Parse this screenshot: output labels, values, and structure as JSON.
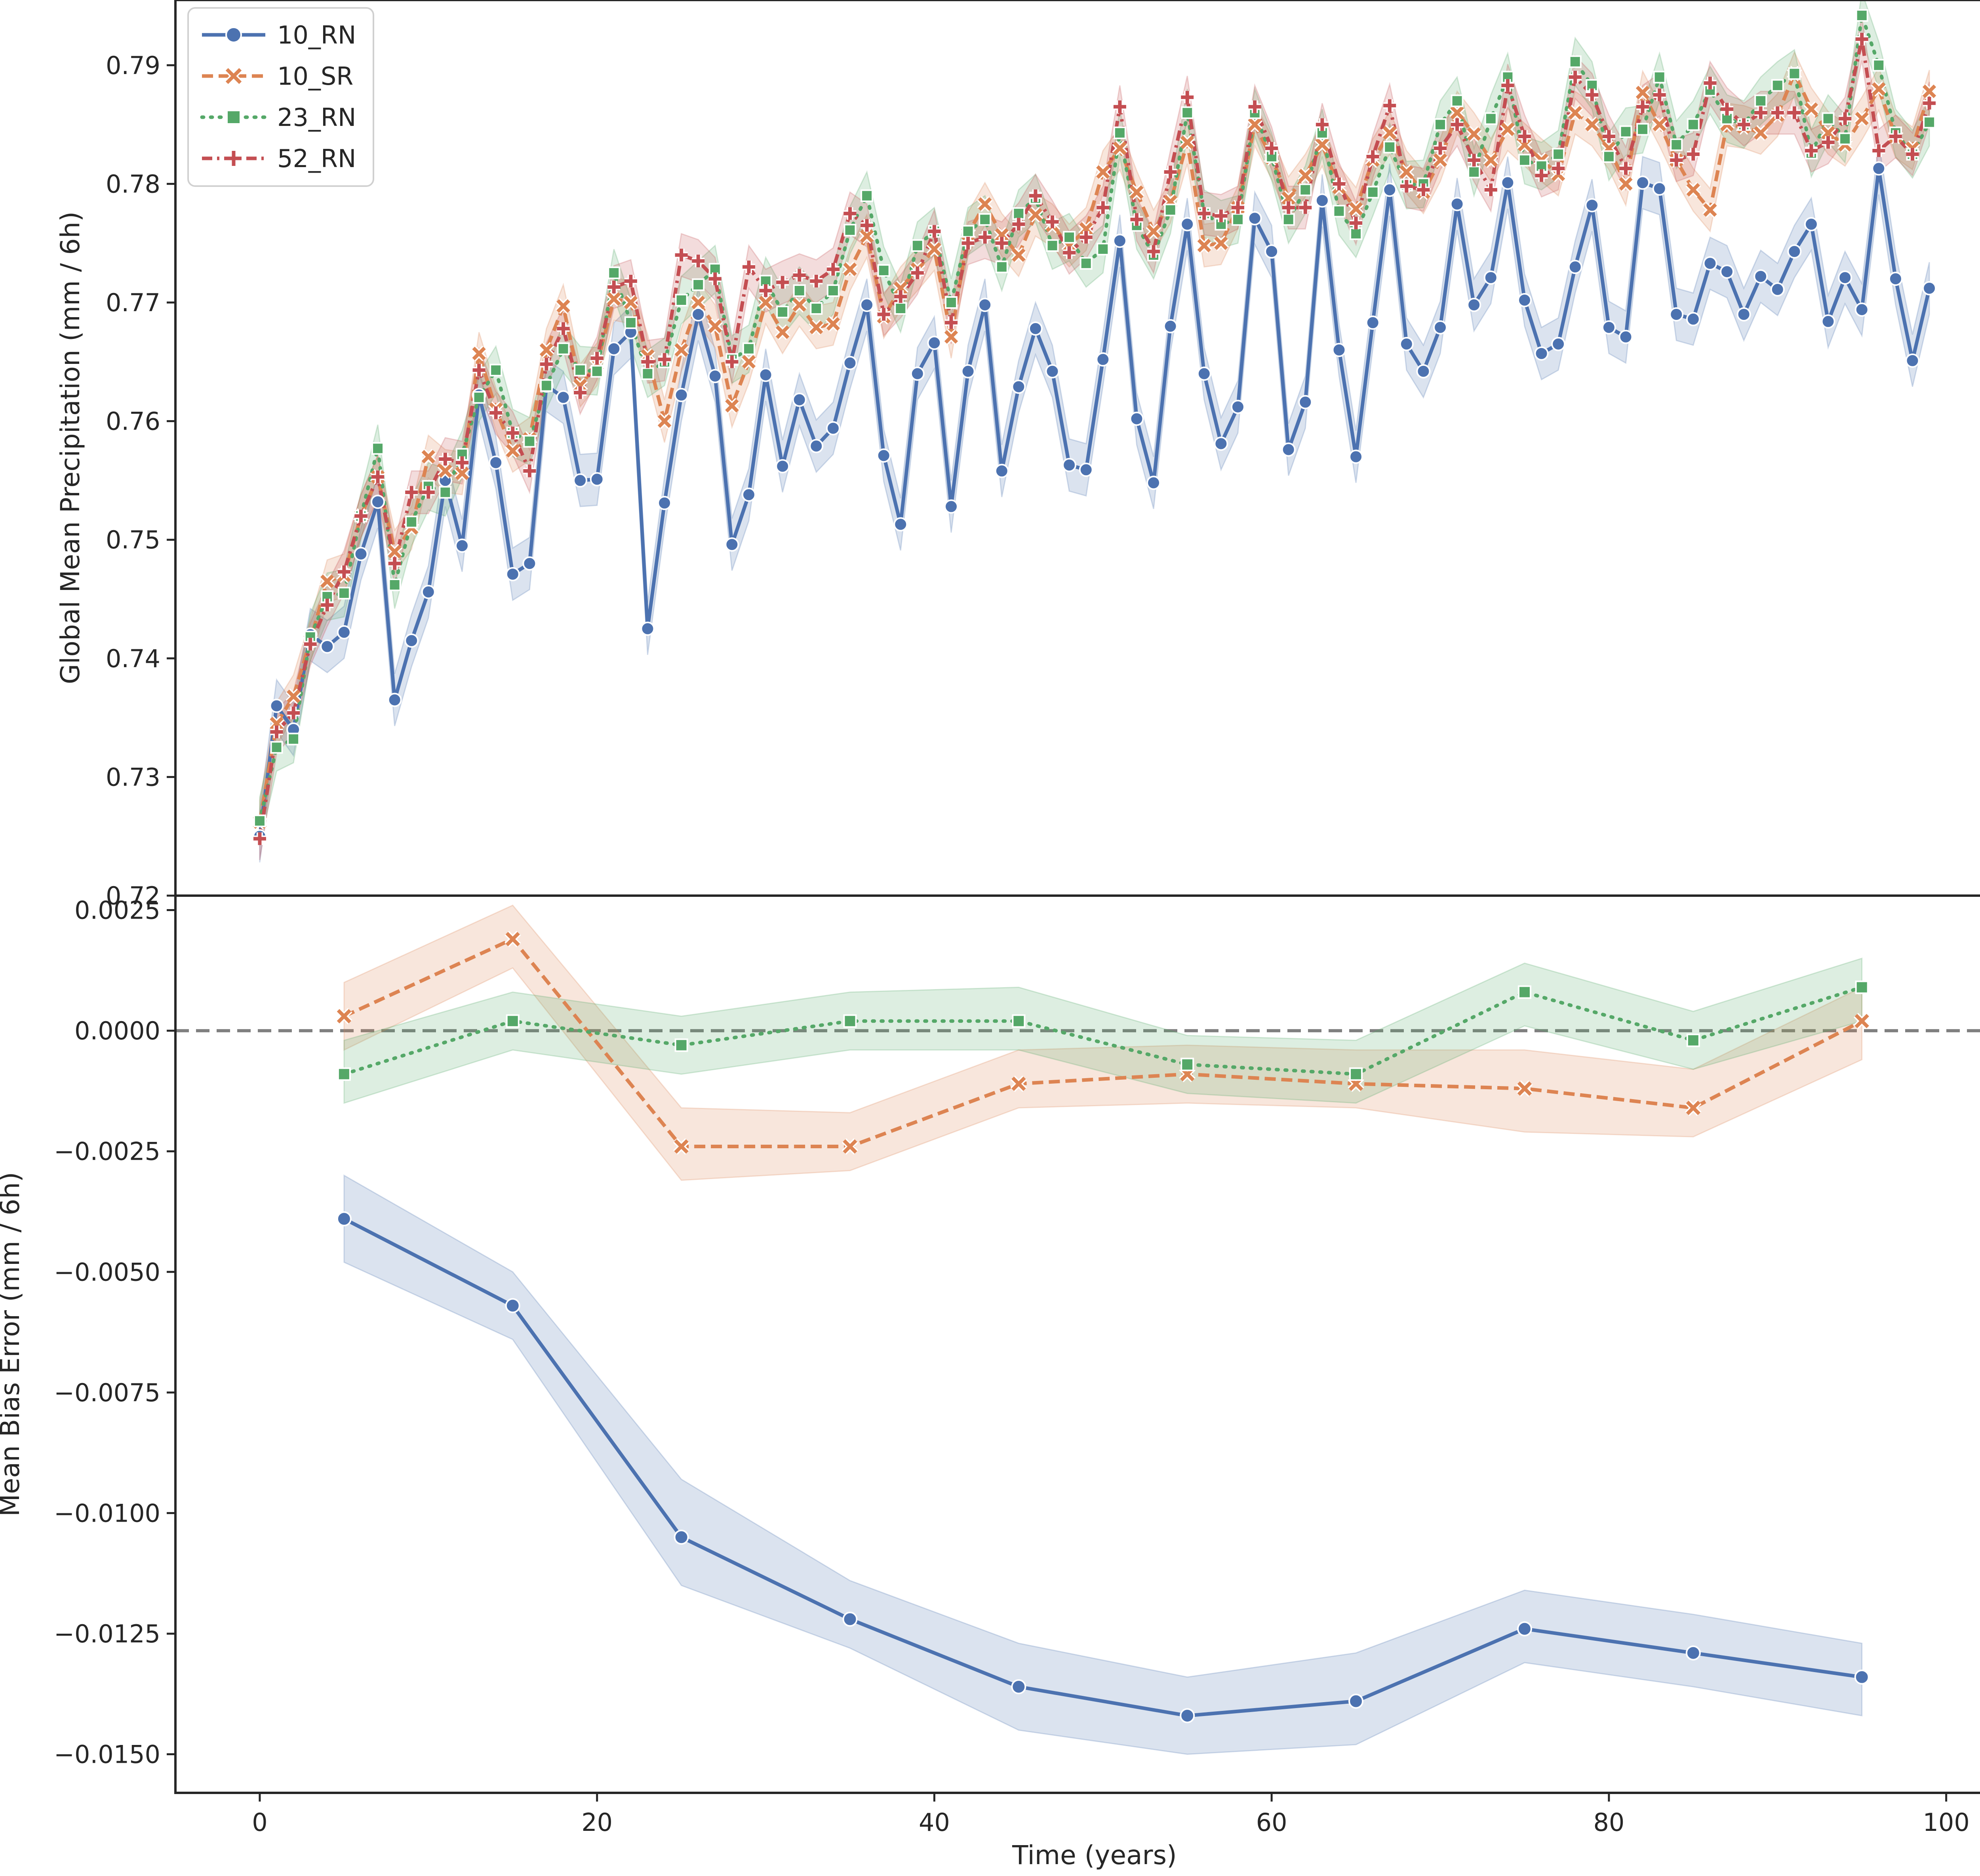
{
  "chart_data": [
    {
      "type": "line",
      "panel": "top",
      "title": "",
      "xlabel": "",
      "ylabel": "Global Mean Precipitation (mm / 6h)",
      "xlim": [
        -5,
        104
      ],
      "ylim": [
        0.72,
        0.7955
      ],
      "yticks": [
        0.72,
        0.73,
        0.74,
        0.75,
        0.76,
        0.77,
        0.78,
        0.79
      ],
      "ytick_labels": [
        "0.72",
        "0.73",
        "0.74",
        "0.75",
        "0.76",
        "0.77",
        "0.78",
        "0.79"
      ],
      "grid": false,
      "legend": {
        "placement": "top-left",
        "entries": [
          "10_RN",
          "10_SR",
          "23_RN",
          "52_RN"
        ]
      },
      "x_step": 1,
      "series": [
        {
          "name": "10_RN",
          "color": "#4c72b0",
          "marker": "circle",
          "dash": "solid",
          "band": 0.0022,
          "values": [
            0.725,
            0.736,
            0.734,
            0.742,
            0.741,
            0.7422,
            0.7488,
            0.7532,
            0.7365,
            0.7415,
            0.7456,
            0.755,
            0.7495,
            0.7622,
            0.7565,
            0.7471,
            0.748,
            0.763,
            0.762,
            0.755,
            0.7551,
            0.7661,
            0.7675,
            0.7425,
            0.7531,
            0.7622,
            0.769,
            0.7638,
            0.7496,
            0.7538,
            0.7639,
            0.7562,
            0.7618,
            0.7579,
            0.7594,
            0.7649,
            0.7698,
            0.7571,
            0.7513,
            0.764,
            0.7666,
            0.7528,
            0.7642,
            0.7698,
            0.7558,
            0.7629,
            0.7678,
            0.7642,
            0.7563,
            0.7559,
            0.7652,
            0.7752,
            0.7602,
            0.7548,
            0.768,
            0.7766,
            0.764,
            0.7581,
            0.7612,
            0.7771,
            0.7743,
            0.7576,
            0.7616,
            0.7786,
            0.766,
            0.757,
            0.7683,
            0.7795,
            0.7665,
            0.7642,
            0.7679,
            0.7783,
            0.7698,
            0.7721,
            0.7801,
            0.7702,
            0.7657,
            0.7665,
            0.773,
            0.7782,
            0.7679,
            0.7671,
            0.7801,
            0.7796,
            0.769,
            0.7686,
            0.7733,
            0.7726,
            0.769,
            0.7722,
            0.7711,
            0.7743,
            0.7766,
            0.7684,
            0.7721,
            0.7694,
            0.7813,
            0.772,
            0.7651,
            0.7712
          ]
        },
        {
          "name": "10_SR",
          "color": "#dd8452",
          "marker": "x",
          "dash": "dashed",
          "band": 0.0018,
          "values": [
            0.7262,
            0.7345,
            0.7368,
            0.7415,
            0.7465,
            0.747,
            0.752,
            0.7553,
            0.749,
            0.751,
            0.757,
            0.7558,
            0.7556,
            0.7657,
            0.761,
            0.7575,
            0.7585,
            0.766,
            0.7697,
            0.763,
            0.7648,
            0.7703,
            0.77,
            0.7655,
            0.76,
            0.766,
            0.77,
            0.768,
            0.7613,
            0.765,
            0.77,
            0.7675,
            0.7698,
            0.7679,
            0.7682,
            0.7728,
            0.7756,
            0.7688,
            0.7712,
            0.7728,
            0.7745,
            0.7671,
            0.7758,
            0.7783,
            0.7757,
            0.774,
            0.7774,
            0.7765,
            0.7748,
            0.7762,
            0.781,
            0.783,
            0.7793,
            0.776,
            0.7785,
            0.7835,
            0.7748,
            0.775,
            0.778,
            0.785,
            0.7822,
            0.7788,
            0.7807,
            0.7833,
            0.7797,
            0.7779,
            0.782,
            0.7843,
            0.781,
            0.7793,
            0.782,
            0.786,
            0.7842,
            0.782,
            0.7846,
            0.7833,
            0.782,
            0.7808,
            0.786,
            0.785,
            0.783,
            0.78,
            0.7877,
            0.785,
            0.782,
            0.7795,
            0.7778,
            0.785,
            0.7848,
            0.7843,
            0.7858,
            0.7893,
            0.7863,
            0.7843,
            0.7833,
            0.7855,
            0.788,
            0.784,
            0.783,
            0.7878
          ]
        },
        {
          "name": "23_RN",
          "color": "#55a868",
          "marker": "square",
          "dash": "dotted",
          "band": 0.002,
          "values": [
            0.7263,
            0.7325,
            0.7332,
            0.7418,
            0.7452,
            0.7455,
            0.752,
            0.7577,
            0.7462,
            0.7515,
            0.7545,
            0.754,
            0.7572,
            0.762,
            0.7643,
            0.759,
            0.7583,
            0.763,
            0.7661,
            0.7643,
            0.7642,
            0.7725,
            0.7683,
            0.764,
            0.765,
            0.7702,
            0.7715,
            0.7728,
            0.7652,
            0.7661,
            0.7718,
            0.7692,
            0.771,
            0.7695,
            0.771,
            0.7761,
            0.779,
            0.7727,
            0.7695,
            0.7748,
            0.776,
            0.77,
            0.776,
            0.777,
            0.773,
            0.7775,
            0.7788,
            0.7748,
            0.7755,
            0.7733,
            0.7745,
            0.7843,
            0.7765,
            0.774,
            0.7778,
            0.786,
            0.7775,
            0.7766,
            0.777,
            0.786,
            0.7823,
            0.777,
            0.7795,
            0.7843,
            0.7777,
            0.7758,
            0.7793,
            0.7831,
            0.7799,
            0.78,
            0.785,
            0.787,
            0.781,
            0.7855,
            0.789,
            0.782,
            0.7815,
            0.7825,
            0.7903,
            0.7883,
            0.7823,
            0.7844,
            0.7846,
            0.789,
            0.7833,
            0.785,
            0.7879,
            0.7855,
            0.785,
            0.787,
            0.7883,
            0.7893,
            0.7826,
            0.7855,
            0.7838,
            0.7942,
            0.79,
            0.7843,
            0.7825,
            0.7852
          ]
        },
        {
          "name": "52_RN",
          "color": "#c44e52",
          "marker": "plus",
          "dash": "dashdot",
          "band": 0.0018,
          "values": [
            0.7248,
            0.7338,
            0.7354,
            0.7412,
            0.7445,
            0.7473,
            0.752,
            0.7553,
            0.748,
            0.754,
            0.754,
            0.7568,
            0.7565,
            0.7643,
            0.7607,
            0.759,
            0.7558,
            0.7648,
            0.7678,
            0.7624,
            0.7653,
            0.7713,
            0.7718,
            0.765,
            0.7652,
            0.774,
            0.7735,
            0.772,
            0.765,
            0.773,
            0.771,
            0.7717,
            0.7723,
            0.7718,
            0.7728,
            0.7775,
            0.7765,
            0.769,
            0.7705,
            0.7725,
            0.776,
            0.7683,
            0.775,
            0.7755,
            0.775,
            0.7766,
            0.779,
            0.7768,
            0.7742,
            0.7755,
            0.778,
            0.7865,
            0.777,
            0.7743,
            0.781,
            0.7873,
            0.7775,
            0.7773,
            0.778,
            0.7865,
            0.783,
            0.778,
            0.778,
            0.785,
            0.78,
            0.7767,
            0.7823,
            0.7866,
            0.7798,
            0.7795,
            0.783,
            0.785,
            0.782,
            0.7795,
            0.7883,
            0.784,
            0.7807,
            0.7813,
            0.789,
            0.7875,
            0.784,
            0.7813,
            0.7865,
            0.7875,
            0.782,
            0.7825,
            0.7885,
            0.7863,
            0.785,
            0.786,
            0.786,
            0.786,
            0.7828,
            0.7835,
            0.7855,
            0.7922,
            0.7828,
            0.784,
            0.7825,
            0.7868
          ]
        }
      ]
    },
    {
      "type": "line",
      "panel": "bottom",
      "title": "",
      "xlabel": "Time (years)",
      "ylabel": "Mean Bias Error (mm / 6h)",
      "xlim": [
        -5,
        104
      ],
      "ylim": [
        -0.0158,
        0.0028
      ],
      "xticks": [
        0,
        20,
        40,
        60,
        80,
        100
      ],
      "xtick_labels": [
        "0",
        "20",
        "40",
        "60",
        "80",
        "100"
      ],
      "yticks": [
        0.0025,
        0.0,
        -0.0025,
        -0.005,
        -0.0075,
        -0.01,
        -0.0125,
        -0.015
      ],
      "ytick_labels": [
        "0.0025",
        "0.0000",
        "−0.0025",
        "−0.0050",
        "−0.0075",
        "−0.0100",
        "−0.0125",
        "−0.0150"
      ],
      "reference_line": {
        "y": 0.0,
        "style": "dashed",
        "color": "#808080"
      },
      "grid": false,
      "x": [
        5,
        15,
        25,
        35,
        45,
        55,
        65,
        75,
        85,
        95
      ],
      "series": [
        {
          "name": "10_RN",
          "color": "#4c72b0",
          "marker": "circle",
          "dash": "solid",
          "values": [
            -0.0039,
            -0.0057,
            -0.0105,
            -0.0122,
            -0.0136,
            -0.0142,
            -0.0139,
            -0.0124,
            -0.0129,
            -0.0134
          ],
          "lower": [
            -0.0048,
            -0.0064,
            -0.0115,
            -0.0128,
            -0.0145,
            -0.015,
            -0.0148,
            -0.0131,
            -0.0136,
            -0.0142
          ],
          "upper": [
            -0.003,
            -0.005,
            -0.0093,
            -0.0114,
            -0.0127,
            -0.0134,
            -0.0129,
            -0.0116,
            -0.0121,
            -0.0127
          ]
        },
        {
          "name": "10_SR",
          "color": "#dd8452",
          "marker": "x",
          "dash": "dashed",
          "values": [
            0.0003,
            0.0019,
            -0.0024,
            -0.0024,
            -0.0011,
            -0.0009,
            -0.0011,
            -0.0012,
            -0.0016,
            0.0002
          ],
          "lower": [
            -0.0004,
            0.0013,
            -0.0031,
            -0.0029,
            -0.0016,
            -0.0015,
            -0.0016,
            -0.0021,
            -0.0022,
            -0.0006
          ],
          "upper": [
            0.001,
            0.0026,
            -0.0016,
            -0.0017,
            -0.0004,
            -0.0003,
            -0.0004,
            -0.0004,
            -0.0008,
            0.0009
          ]
        },
        {
          "name": "23_RN",
          "color": "#55a868",
          "marker": "square",
          "dash": "dotted",
          "values": [
            -0.0009,
            0.0002,
            -0.0003,
            0.0002,
            0.0002,
            -0.0007,
            -0.0009,
            0.0008,
            -0.0002,
            0.0009
          ],
          "lower": [
            -0.0015,
            -0.0004,
            -0.0009,
            -0.0004,
            -0.0004,
            -0.0013,
            -0.0015,
            0.0001,
            -0.0008,
            0.0002
          ],
          "upper": [
            -0.0002,
            0.0008,
            0.0003,
            0.0008,
            0.0009,
            -0.0001,
            -0.0002,
            0.0014,
            0.0004,
            0.0015
          ]
        }
      ]
    }
  ]
}
